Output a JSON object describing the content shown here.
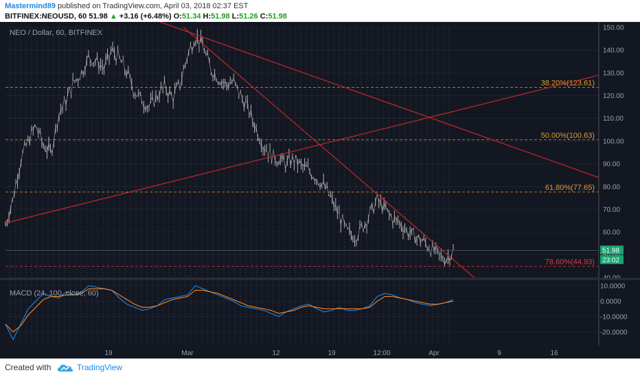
{
  "header": {
    "author": "Mastermind89",
    "published_text": "published on TradingView.com, April 03, 2018 02:37 EST",
    "symbol": "BITFINEX:NEOUSD, 60",
    "last": "51.98",
    "change": "+3.16 (+6.48%)",
    "o_label": "O:",
    "o_value": "51.34",
    "h_label": "H:",
    "h_value": "51.98",
    "l_label": "L:",
    "l_value": "51.26",
    "c_label": "C:",
    "c_value": "51.98"
  },
  "footer": {
    "created_with": "Created with",
    "brand": "TradingView"
  },
  "chart_data": [
    {
      "type": "line",
      "title": "NEO / Dollar, 60, BITFINEX",
      "ylim": [
        40,
        150
      ],
      "y_ticks": [
        "150.00",
        "140.00",
        "130.00",
        "120.00",
        "110.00",
        "100.00",
        "90.00",
        "80.00",
        "70.00",
        "60.00",
        "50.00",
        "40.00"
      ],
      "x_ticks": [
        "19",
        "Mar",
        "12",
        "19",
        "12:00",
        "Apr",
        "9",
        "16"
      ],
      "price_tag": "51.98",
      "countdown_tag": "23:02",
      "price_series": [
        63,
        75,
        92,
        100,
        107,
        98,
        95,
        112,
        118,
        126,
        130,
        137,
        135,
        132,
        140,
        136,
        130,
        122,
        118,
        115,
        120,
        124,
        119,
        125,
        138,
        146,
        142,
        132,
        128,
        125,
        126,
        120,
        114,
        106,
        98,
        94,
        92,
        90,
        92,
        89,
        87,
        84,
        80,
        74,
        67,
        60,
        58,
        62,
        68,
        74,
        70,
        66,
        64,
        60,
        58,
        56,
        53,
        50,
        48,
        52
      ],
      "fibonacci_levels": [
        {
          "label": "38.20%(123.61)",
          "value": 123.61,
          "color": "#e39c2c"
        },
        {
          "label": "50.00%(100.63)",
          "value": 100.63,
          "color": "#e39c2c"
        },
        {
          "label": "61.80%(77.65)",
          "value": 77.65,
          "color": "#e39c2c"
        },
        {
          "label": "78.60%(44.93)",
          "value": 44.93,
          "color": "#e53935"
        }
      ],
      "trendlines": [
        {
          "from": [
            0,
            64
          ],
          "to": [
            1,
            129
          ]
        },
        {
          "from": [
            0.2,
            158
          ],
          "to": [
            1,
            84
          ]
        },
        {
          "from": [
            0.3,
            150
          ],
          "to": [
            0.79,
            40
          ]
        }
      ]
    },
    {
      "type": "line",
      "title": "MACD (24, 100, close, 60)",
      "ylim": [
        -27,
        13
      ],
      "y_ticks": [
        "10.0000",
        "0.0000",
        "-10.0000",
        "-20.0000"
      ],
      "series": [
        {
          "values": [
            -15,
            -25,
            -15,
            -5,
            0,
            5,
            3,
            2,
            6,
            4,
            6,
            10,
            9,
            8,
            7,
            2,
            -2,
            -4,
            -6,
            -5,
            -3,
            1,
            2,
            3,
            4,
            10,
            8,
            6,
            4,
            2,
            0,
            -3,
            -4,
            -5,
            -6,
            -8,
            -10,
            -7,
            -5,
            -3,
            -2,
            -5,
            -7,
            -6,
            -4,
            -6,
            -6,
            -5,
            -3,
            3,
            5,
            4,
            2,
            1,
            -1,
            -2,
            -3,
            -2,
            -1,
            1
          ]
        },
        {
          "values": [
            -15,
            -20,
            -16,
            -9,
            -4,
            1,
            3,
            3,
            4,
            4,
            5,
            8,
            8,
            8,
            7,
            4,
            1,
            -2,
            -4,
            -4,
            -3,
            -1,
            1,
            2,
            3,
            7,
            7,
            6,
            5,
            3,
            1,
            -1,
            -3,
            -4,
            -5,
            -6,
            -8,
            -7,
            -6,
            -4,
            -3,
            -4,
            -5,
            -5,
            -5,
            -5,
            -5,
            -5,
            -4,
            0,
            3,
            3,
            2,
            1,
            0,
            -1,
            -2,
            -2,
            -1,
            0
          ]
        }
      ]
    }
  ],
  "colors": {
    "background": "#131722",
    "grid": "#3a3f4b",
    "candle": "#b7b2b2",
    "trendline": "#c62828",
    "macd": "#1e88e5",
    "signal": "#ff8a1f",
    "price_tag": "#1aa370",
    "axis_text": "#9aa0ac"
  }
}
